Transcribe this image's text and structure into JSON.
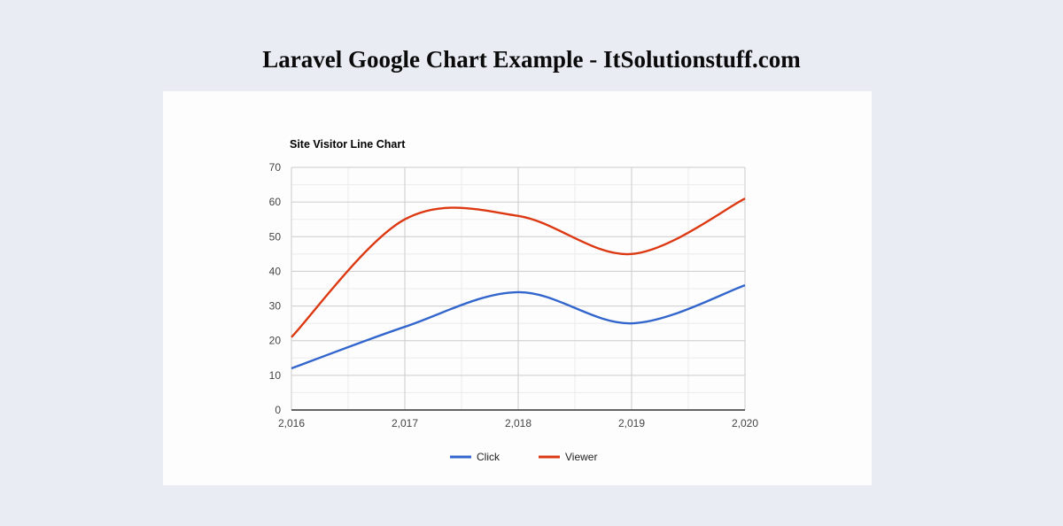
{
  "page": {
    "title": "Laravel Google Chart Example - ItSolutionstuff.com",
    "background_color": "#EAECF4",
    "panel_color": "#FDFDFE"
  },
  "chart_data": {
    "type": "line",
    "title": "Site Visitor Line Chart",
    "x": [
      2016,
      2017,
      2018,
      2019,
      2020
    ],
    "x_tick_labels": [
      "2,016",
      "2,017",
      "2,018",
      "2,019",
      "2,020"
    ],
    "series": [
      {
        "name": "Click",
        "color": "#3366CC",
        "values": [
          12,
          24,
          34,
          25,
          36
        ]
      },
      {
        "name": "Viewer",
        "color": "#DC3912",
        "values": [
          21,
          55,
          56,
          45,
          61
        ]
      }
    ],
    "ylim": [
      0,
      70
    ],
    "y_ticks": [
      0,
      10,
      20,
      30,
      40,
      50,
      60,
      70
    ],
    "grid": true,
    "curve": "smooth",
    "legend_position": "bottom",
    "colors": {
      "major_grid": "#CCCCCC",
      "minor_grid": "#EBEBEB",
      "baseline": "#333333",
      "axis_text": "#444444"
    }
  }
}
